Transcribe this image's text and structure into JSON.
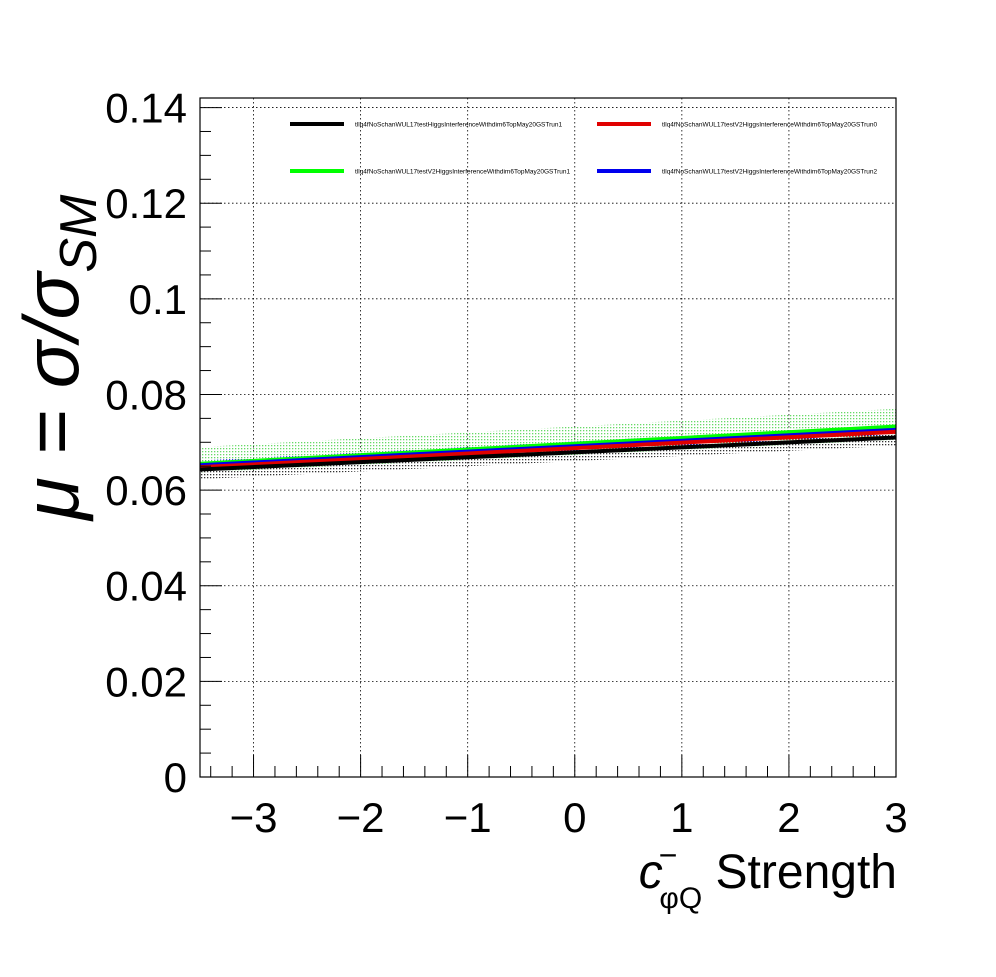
{
  "chart_data": {
    "type": "line",
    "title": "",
    "xlabel": {
      "main": "c",
      "sup": "−",
      "sub": "φQ",
      "rest": " Strength"
    },
    "ylabel": {
      "prefix": "μ = σ/σ",
      "sub": "SM"
    },
    "xlim": [
      -3.5,
      3.0
    ],
    "ylim": [
      0,
      0.142
    ],
    "x_ticks": [
      -3,
      -2,
      -1,
      0,
      1,
      2,
      3
    ],
    "x_tick_labels": [
      "−3",
      "−2",
      "−1",
      "0",
      "1",
      "2",
      "3"
    ],
    "y_ticks": [
      0,
      0.02,
      0.04,
      0.06,
      0.08,
      0.1,
      0.12,
      0.14
    ],
    "y_tick_labels": [
      "0",
      "0.02",
      "0.04",
      "0.06",
      "0.08",
      "0.1",
      "0.12",
      "0.14"
    ],
    "grid": true,
    "legend_position": "top",
    "x": [
      -3.5,
      3.0
    ],
    "series": [
      {
        "name": "tllq4fNoSchanWUL17testHiggsInterferenceWithdim6TopMay20GSTrun1",
        "color": "#000000",
        "values": [
          0.0643,
          0.071
        ],
        "band_lower": [
          0.0623,
          0.0693
        ],
        "band_upper": [
          0.066,
          0.0728
        ],
        "band_color": "#000000"
      },
      {
        "name": "tllq4fNoSchanWUL17testV2HiggsInterferenceWithdim6TopMay20GSTrun0",
        "color": "#e00000",
        "values": [
          0.0648,
          0.0722
        ],
        "band_lower": [
          0.064,
          0.0712
        ],
        "band_upper": [
          0.0657,
          0.0732
        ],
        "band_color": "#e00000"
      },
      {
        "name": "tllq4fNoSchanWUL17testV2HiggsInterferenceWithdim6TopMay20GSTrun1",
        "color": "#00ff00",
        "values": [
          0.0655,
          0.0733
        ],
        "band_lower": [
          0.0637,
          0.0705
        ],
        "band_upper": [
          0.069,
          0.077
        ],
        "band_color": "#33cc33"
      },
      {
        "name": "tllq4fNoSchanWUL17testV2HiggsInterferenceWithdim6TopMay20GSTrun2",
        "color": "#0000ee",
        "values": [
          0.0652,
          0.0726
        ],
        "band_lower": [
          0.0642,
          0.0716
        ],
        "band_upper": [
          0.0662,
          0.0736
        ],
        "band_color": "#0000ee"
      }
    ]
  }
}
